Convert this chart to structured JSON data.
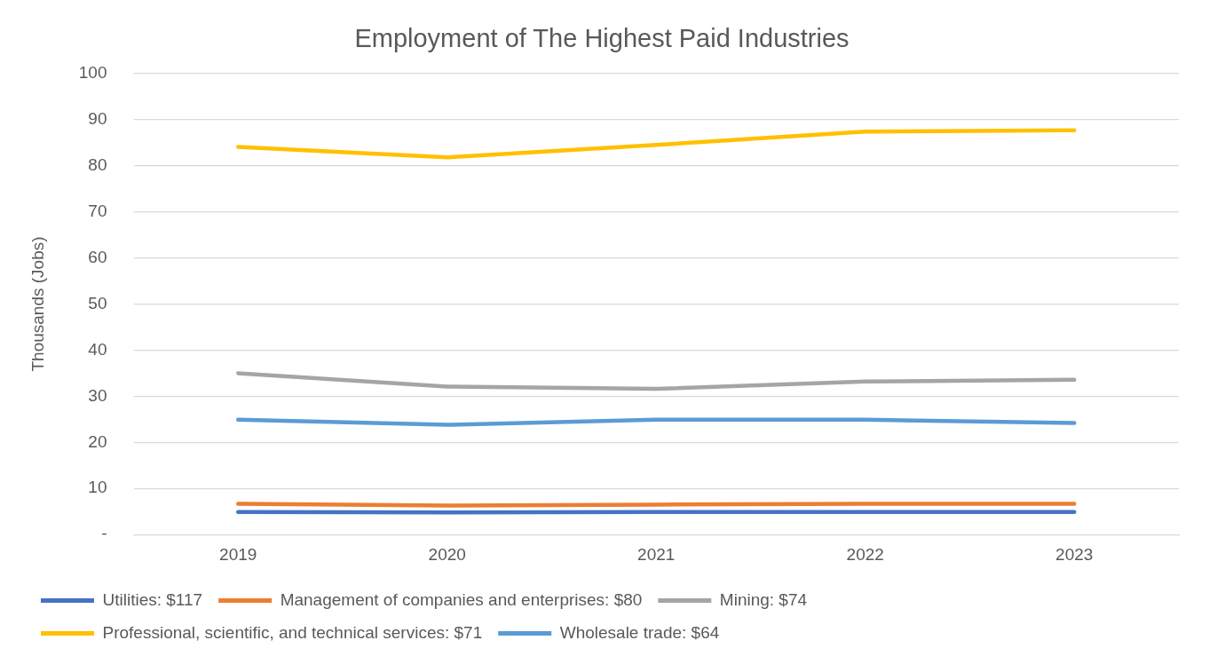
{
  "chart_data": {
    "type": "line",
    "title": "Employment of The Highest Paid Industries",
    "ylabel": "Thousands (Jobs)",
    "categories": [
      "2019",
      "2020",
      "2021",
      "2022",
      "2023"
    ],
    "series": [
      {
        "name": "Utilities: $117",
        "color": "#4472c4",
        "values": [
          4.9,
          4.8,
          4.9,
          4.9,
          4.9
        ]
      },
      {
        "name": "Management of companies and enterprises: $80",
        "color": "#ed7d31",
        "values": [
          6.7,
          6.3,
          6.5,
          6.7,
          6.7
        ]
      },
      {
        "name": "Mining: $74",
        "color": "#a5a5a5",
        "values": [
          35,
          32.1,
          31.6,
          33.2,
          33.6
        ]
      },
      {
        "name": "Professional, scientific, and technical services: $71",
        "color": "#ffc000",
        "values": [
          84.1,
          81.8,
          84.5,
          87.4,
          87.7
        ]
      },
      {
        "name": "Wholesale trade: $64",
        "color": "#5b9bd5",
        "values": [
          24.9,
          23.8,
          24.9,
          24.9,
          24.2
        ]
      }
    ],
    "ylim": [
      0,
      100
    ],
    "yticks": [
      {
        "value": 0,
        "label": "-"
      },
      10,
      20,
      30,
      40,
      50,
      60,
      70,
      80,
      90,
      100
    ],
    "grid": "y",
    "legend": "bottom",
    "marker": "none",
    "line_style": "solid"
  }
}
